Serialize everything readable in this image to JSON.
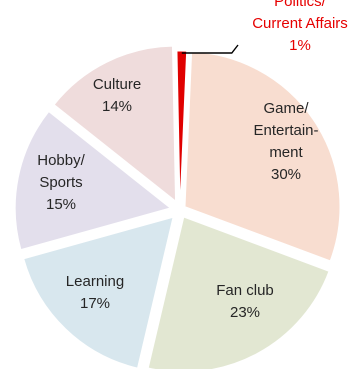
{
  "chart_data": {
    "type": "pie",
    "exploded": true,
    "slices": [
      {
        "key": "politics",
        "label_lines": [
          "Politics/",
          "Current Affairs",
          "1%"
        ],
        "value": 1,
        "color": "#e00000",
        "label_color": "#e60000"
      },
      {
        "key": "game",
        "label_lines": [
          "Game/",
          "Entertain-",
          "ment",
          "30%"
        ],
        "value": 30,
        "color": "#f8ddd0",
        "label_color": "#262626"
      },
      {
        "key": "fanclub",
        "label_lines": [
          "Fan club",
          "23%"
        ],
        "value": 23,
        "color": "#e2e7d2",
        "label_color": "#262626"
      },
      {
        "key": "learning",
        "label_lines": [
          "Learning",
          "17%"
        ],
        "value": 17,
        "color": "#d8e7ee",
        "label_color": "#262626"
      },
      {
        "key": "hobby",
        "label_lines": [
          "Hobby/",
          "Sports",
          "15%"
        ],
        "value": 15,
        "color": "#e3dfec",
        "label_color": "#262626"
      },
      {
        "key": "culture",
        "label_lines": [
          "Culture",
          "14%"
        ],
        "value": 14,
        "color": "#efdcdc",
        "label_color": "#262626"
      }
    ]
  }
}
